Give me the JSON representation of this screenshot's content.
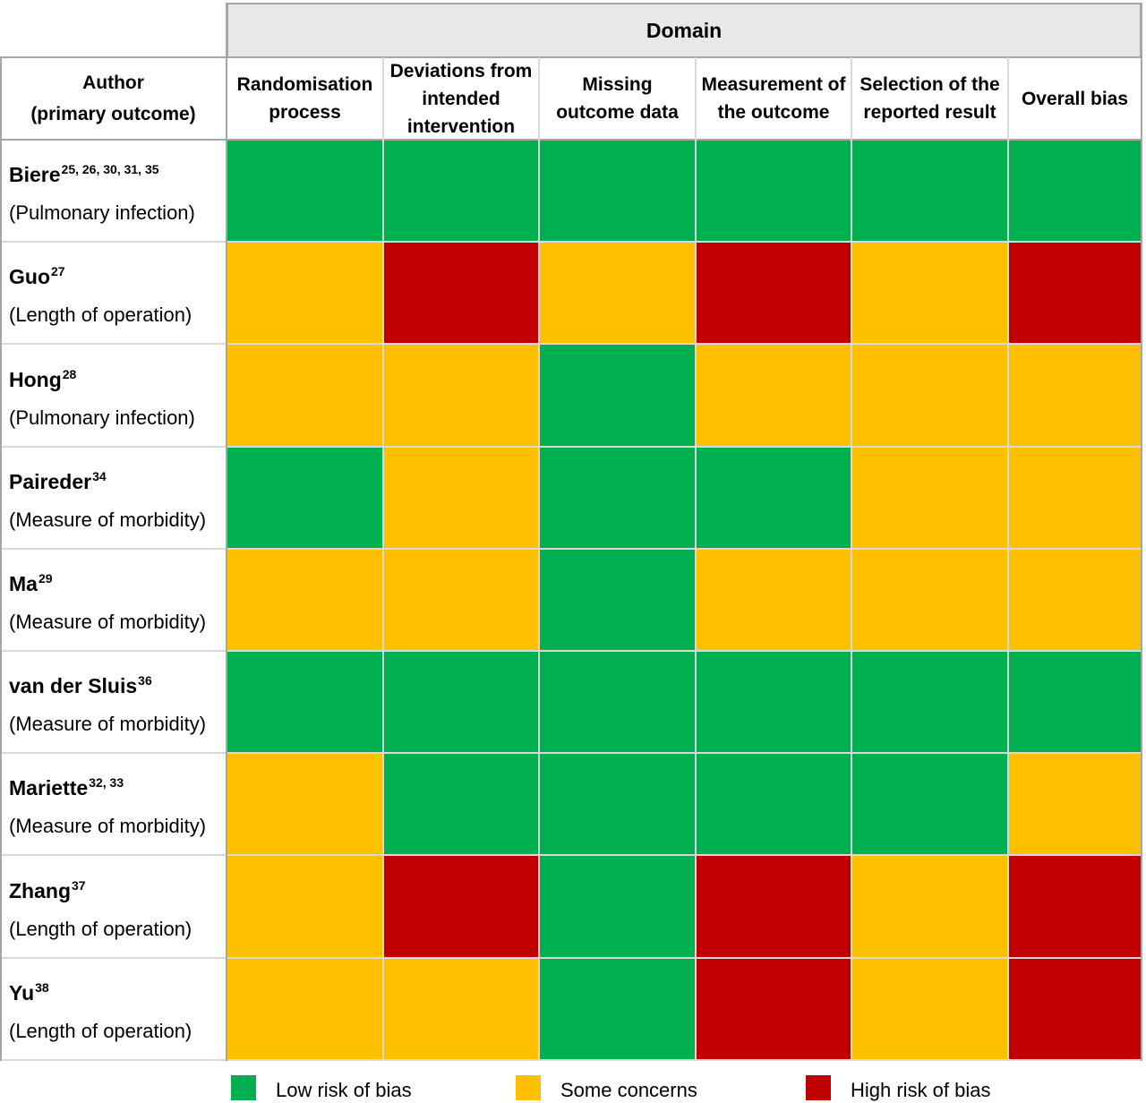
{
  "header": {
    "domain": "Domain",
    "author_line1": "Author",
    "author_line2": "(primary outcome)"
  },
  "columns": [
    "Randomisation process",
    "Deviations from intended intervention",
    "Missing outcome data",
    "Measurement of the outcome",
    "Selection of the reported result",
    "Overall bias"
  ],
  "legend": [
    {
      "key": "low",
      "label": "Low risk of bias"
    },
    {
      "key": "some",
      "label": "Some concerns"
    },
    {
      "key": "high",
      "label": "High risk of bias"
    }
  ],
  "colors": {
    "low": "#00b050",
    "some": "#ffc000",
    "high": "#c00000"
  },
  "chart_data": {
    "type": "heatmap",
    "title": "",
    "categories": [
      "low",
      "some",
      "high"
    ],
    "rows": [
      {
        "author": "Biere",
        "refs": "25, 26, 30, 31, 35",
        "outcome": "(Pulmonary infection)",
        "values": [
          "low",
          "low",
          "low",
          "low",
          "low",
          "low"
        ]
      },
      {
        "author": "Guo",
        "refs": "27",
        "outcome": "(Length of operation)",
        "values": [
          "some",
          "high",
          "some",
          "high",
          "some",
          "high"
        ]
      },
      {
        "author": "Hong",
        "refs": "28",
        "outcome": "(Pulmonary infection)",
        "values": [
          "some",
          "some",
          "low",
          "some",
          "some",
          "some"
        ]
      },
      {
        "author": "Paireder",
        "refs": "34",
        "outcome": "(Measure of morbidity)",
        "values": [
          "low",
          "some",
          "low",
          "low",
          "some",
          "some"
        ]
      },
      {
        "author": "Ma",
        "refs": "29",
        "outcome": "(Measure of morbidity)",
        "values": [
          "some",
          "some",
          "low",
          "some",
          "some",
          "some"
        ]
      },
      {
        "author": "van der Sluis",
        "refs": "36",
        "outcome": "(Measure of morbidity)",
        "values": [
          "low",
          "low",
          "low",
          "low",
          "low",
          "low"
        ]
      },
      {
        "author": "Mariette",
        "refs": "32, 33",
        "outcome": "(Measure of morbidity)",
        "values": [
          "some",
          "low",
          "low",
          "low",
          "low",
          "some"
        ]
      },
      {
        "author": "Zhang",
        "refs": "37",
        "outcome": "(Length of operation)",
        "values": [
          "some",
          "high",
          "low",
          "high",
          "some",
          "high"
        ]
      },
      {
        "author": "Yu",
        "refs": "38",
        "outcome": "(Length of operation)",
        "values": [
          "some",
          "some",
          "low",
          "high",
          "some",
          "high"
        ]
      }
    ]
  }
}
